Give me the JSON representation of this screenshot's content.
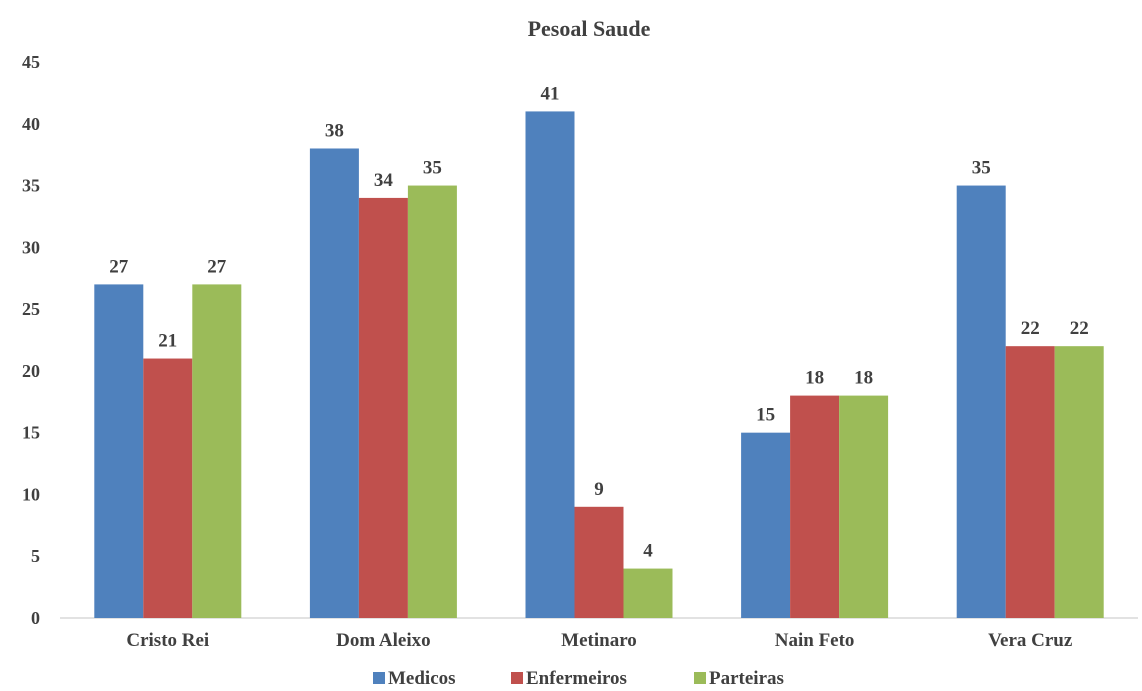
{
  "chart_data": {
    "type": "bar",
    "title": "Pesoal Saude",
    "categories": [
      "Cristo Rei",
      "Dom Aleixo",
      "Metinaro",
      "Nain Feto",
      "Vera Cruz"
    ],
    "series": [
      {
        "name": "Medicos",
        "color": "#4F81BD",
        "values": [
          27,
          38,
          41,
          15,
          35
        ]
      },
      {
        "name": "Enfermeiros",
        "color": "#C0504D",
        "values": [
          21,
          34,
          9,
          18,
          22
        ]
      },
      {
        "name": "Parteiras",
        "color": "#9BBB59",
        "values": [
          27,
          35,
          4,
          18,
          22
        ]
      }
    ],
    "ylim": [
      0,
      45
    ],
    "yticks": [
      0,
      5,
      10,
      15,
      20,
      25,
      30,
      35,
      40,
      45
    ],
    "grid": false,
    "legend_position": "bottom"
  }
}
